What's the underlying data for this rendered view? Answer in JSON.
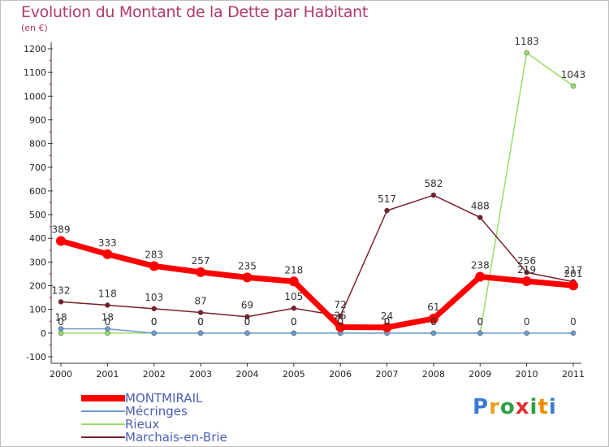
{
  "title": "Evolution du Montant de la Dette par Habitant",
  "unit": "(en €)",
  "logo": {
    "text": "Proxiti",
    "letter_colors": [
      "#3a7bd5",
      "#e8a020",
      "#2f9e44",
      "#e03131",
      "#2f9e44",
      "#f08c00",
      "#3a7bd5"
    ]
  },
  "chart_data": {
    "type": "line",
    "title": "Evolution du Montant de la Dette par Habitant",
    "ylabel": "(en €)",
    "xlabel": "",
    "ylim": [
      -100,
      1200
    ],
    "yticks": [
      "-100",
      "0",
      "100",
      "200",
      "300",
      "400",
      "500",
      "600",
      "700",
      "800",
      "900",
      "1000",
      "1100",
      "1200"
    ],
    "categories": [
      "2000",
      "2001",
      "2002",
      "2003",
      "2004",
      "2005",
      "2006",
      "2007",
      "2008",
      "2009",
      "2010",
      "2011"
    ],
    "grid": false,
    "legend": "bottom-left",
    "series": [
      {
        "name": "MONTMIRAIL",
        "color": "#ff0000",
        "values": [
          389,
          333,
          283,
          257,
          235,
          218,
          25,
          24,
          61,
          238,
          219,
          201
        ],
        "labels": [
          "389",
          "333",
          "283",
          "257",
          "235",
          "218",
          "25",
          "24",
          "61",
          "238",
          "219",
          "201"
        ]
      },
      {
        "name": "Mécringes",
        "color": "#6b9bd1",
        "values": [
          18,
          18,
          0,
          0,
          0,
          0,
          0,
          0,
          0,
          0,
          0,
          0
        ],
        "labels": [
          "18",
          "18",
          "0",
          "0",
          "0",
          "0",
          "0",
          "0",
          "0",
          "0",
          "0",
          "0"
        ]
      },
      {
        "name": "Rieux",
        "color": "#99dd66",
        "values": [
          0,
          0,
          0,
          0,
          0,
          0,
          0,
          0,
          0,
          0,
          1183,
          1043
        ],
        "labels": [
          "0",
          "0",
          "0",
          "0",
          "0",
          "0",
          "0",
          "0",
          "0",
          "0",
          "1183",
          "1043"
        ]
      },
      {
        "name": "Marchais-en-Brie",
        "color": "#7a1f2b",
        "values": [
          132,
          118,
          103,
          87,
          69,
          105,
          72,
          517,
          582,
          488,
          256,
          217
        ],
        "labels": [
          "132",
          "118",
          "103",
          "87",
          "69",
          "105",
          "72",
          "517",
          "582",
          "488",
          "256",
          "217"
        ]
      }
    ]
  }
}
